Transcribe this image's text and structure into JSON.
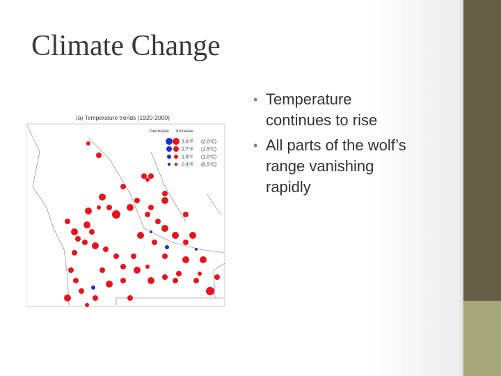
{
  "slide": {
    "title": "Climate Change",
    "bullets": [
      {
        "lines": [
          "Temperature",
          "continues to rise"
        ]
      },
      {
        "lines": [
          "All parts of the wolf’s",
          "range vanishing",
          "rapidly"
        ]
      }
    ],
    "map": {
      "title": "(a) Temperature trends (1920-2000)",
      "legend": {
        "decrease": "Decrease",
        "increase": "Increase",
        "rows": [
          {
            "f": "3.6°F",
            "c": "(2.0°C)"
          },
          {
            "f": "2.7°F",
            "c": "(1.5°C)"
          },
          {
            "f": "1.8°F",
            "c": "(1.0°C)"
          },
          {
            "f": "0.9°F",
            "c": "(0.5°C)"
          }
        ]
      }
    }
  }
}
